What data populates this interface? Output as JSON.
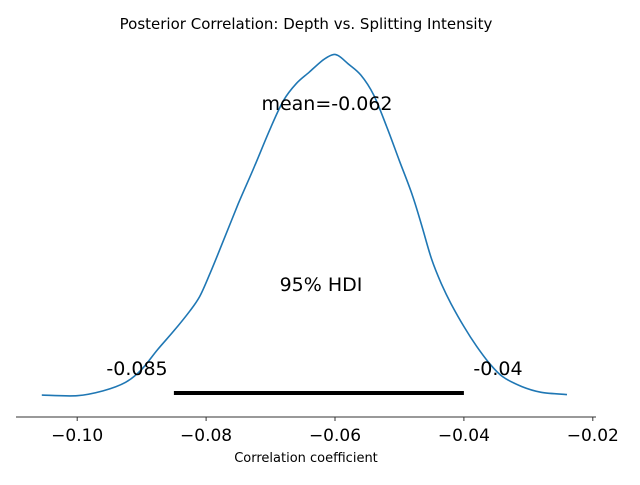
{
  "chart_data": {
    "type": "area",
    "title": "Posterior Correlation: Depth vs. Splitting Intensity",
    "xlabel": "Correlation coefficient",
    "ylabel": "",
    "xlim": [
      -0.1095,
      -0.0195
    ],
    "xticks": [
      -0.1,
      -0.08,
      -0.06,
      -0.04,
      -0.02
    ],
    "xtick_labels": [
      "−0.10",
      "−0.08",
      "−0.06",
      "−0.04",
      "−0.02"
    ],
    "grid": false,
    "line_color": "#1f77b4",
    "hdi_color": "#000000",
    "series": [
      {
        "values": [
          {
            "x": -0.1055,
            "y": 0.01
          },
          {
            "x": -0.1,
            "y": 0.008
          },
          {
            "x": -0.096,
            "y": 0.025
          },
          {
            "x": -0.0925,
            "y": 0.055
          },
          {
            "x": -0.09,
            "y": 0.1
          },
          {
            "x": -0.0875,
            "y": 0.17
          },
          {
            "x": -0.085,
            "y": 0.235
          },
          {
            "x": -0.0825,
            "y": 0.305
          },
          {
            "x": -0.081,
            "y": 0.355
          },
          {
            "x": -0.0795,
            "y": 0.43
          },
          {
            "x": -0.0775,
            "y": 0.54
          },
          {
            "x": -0.075,
            "y": 0.68
          },
          {
            "x": -0.0725,
            "y": 0.81
          },
          {
            "x": -0.07,
            "y": 0.945
          },
          {
            "x": -0.068,
            "y": 1.04
          },
          {
            "x": -0.066,
            "y": 1.1
          },
          {
            "x": -0.064,
            "y": 1.14
          },
          {
            "x": -0.062,
            "y": 1.18
          },
          {
            "x": -0.0605,
            "y": 1.2
          },
          {
            "x": -0.0595,
            "y": 1.198
          },
          {
            "x": -0.058,
            "y": 1.17
          },
          {
            "x": -0.056,
            "y": 1.13
          },
          {
            "x": -0.054,
            "y": 1.06
          },
          {
            "x": -0.052,
            "y": 0.95
          },
          {
            "x": -0.05,
            "y": 0.83
          },
          {
            "x": -0.048,
            "y": 0.71
          },
          {
            "x": -0.0465,
            "y": 0.6
          },
          {
            "x": -0.045,
            "y": 0.485
          },
          {
            "x": -0.0435,
            "y": 0.4
          },
          {
            "x": -0.042,
            "y": 0.33
          },
          {
            "x": -0.04,
            "y": 0.25
          },
          {
            "x": -0.038,
            "y": 0.18
          },
          {
            "x": -0.036,
            "y": 0.12
          },
          {
            "x": -0.034,
            "y": 0.075
          },
          {
            "x": -0.031,
            "y": 0.04
          },
          {
            "x": -0.028,
            "y": 0.02
          },
          {
            "x": -0.024,
            "y": 0.012
          }
        ]
      }
    ],
    "annotations": {
      "mean_label": "mean=-0.062",
      "hdi_label": "95% HDI",
      "hdi_low_label": "-0.085",
      "hdi_high_label": "-0.04",
      "hdi_interval": [
        -0.085,
        -0.04
      ],
      "mean_value": -0.062
    }
  }
}
